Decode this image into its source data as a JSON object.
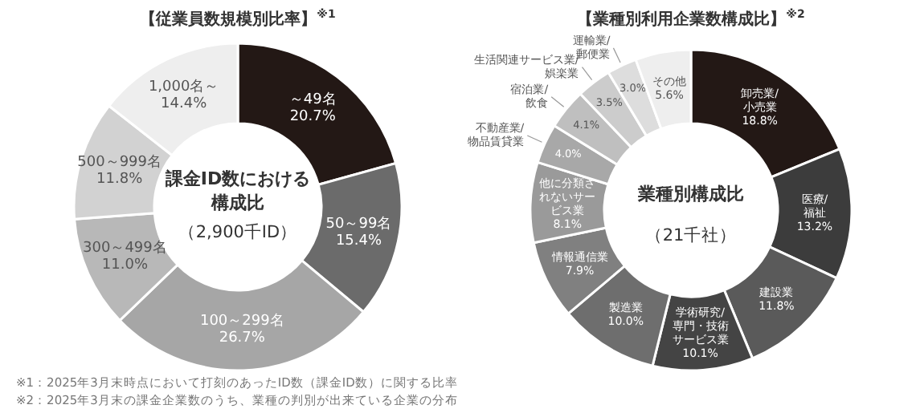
{
  "chart_data": [
    {
      "type": "donut",
      "title": "【従業員数規模別比率】$^{※1}$",
      "annotations": [
        "課金ID数における構成比",
        "（2,900千ID）",
        "※1：2025年3月末時点において打刻のあったID数（課金ID数）に関する比率"
      ],
      "categories": [
        "～49名",
        "50～99名",
        "100～299名",
        "300～499名",
        "500～999名",
        "1,000名～"
      ],
      "values": [
        20.7,
        15.4,
        26.7,
        11.0,
        11.8,
        14.4
      ],
      "value_labels": [
        "20.7%",
        "15.4%",
        "26.7%",
        "11.0%",
        "11.8%",
        "14.4%"
      ],
      "colors": [
        "#231815",
        "#6b6b6b",
        "#a6a6a6",
        "#b8b8b8",
        "#d2d2d2",
        "#eeeeee"
      ],
      "legend": false
    },
    {
      "type": "donut",
      "title": "【業種別利用企業数構成比】$^{※2}$",
      "annotations": [
        "業種別構成比",
        "（21千社）",
        "※2：2025年3月末の課金企業数のうち、業種の判別が出来ている企業の分布"
      ],
      "categories": [
        "卸売業/小売業",
        "医療/福祉",
        "建設業",
        "学術研究/専門・技術サービス業",
        "製造業",
        "情報通信業",
        "他に分類されないサービス業",
        "不動産業/物品賃貸業",
        "宿泊業/飲食",
        "生活関連サービス業/娯楽業",
        "運輸業/郵便業",
        "その他"
      ],
      "values": [
        18.8,
        13.2,
        11.8,
        10.1,
        10.0,
        7.9,
        8.1,
        4.0,
        4.1,
        3.5,
        3.0,
        5.6
      ],
      "value_labels": [
        "18.8%",
        "13.2%",
        "11.8%",
        "10.1%",
        "10.0%",
        "7.9%",
        "8.1%",
        "4.0%",
        "4.1%",
        "3.5%",
        "3.0%",
        "5.6%"
      ],
      "colors": [
        "#231815",
        "#3c3c3c",
        "#5a5a5a",
        "#444444",
        "#6e6e6e",
        "#808080",
        "#9a9a9a",
        "#a8a8a8",
        "#bfbfbf",
        "#cccccc",
        "#dddddd",
        "#eeeeee"
      ],
      "legend": false
    }
  ]
}
